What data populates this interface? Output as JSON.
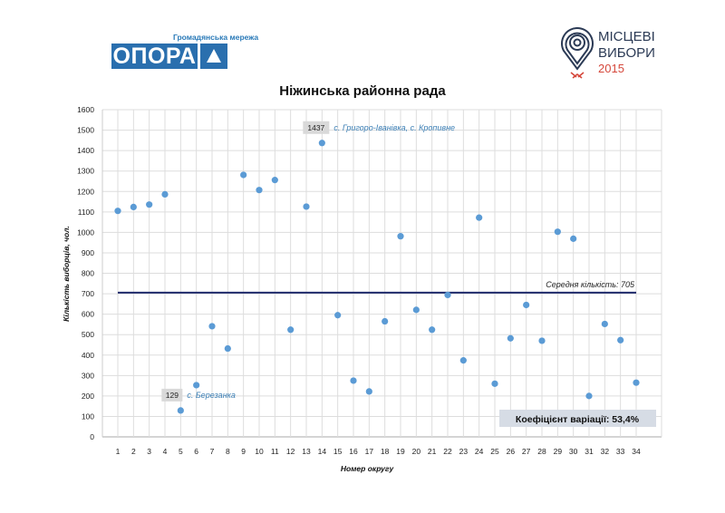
{
  "logos": {
    "opora": {
      "subtitle": "Громадянська мережа",
      "name": "ОПОРА"
    },
    "elections": {
      "line1": "МІСЦЕВІ",
      "line2": "ВИБОРИ",
      "year": "2015"
    }
  },
  "chart_data": {
    "type": "scatter",
    "title": "Ніжинська районна рада",
    "xlabel": "Номер округу",
    "ylabel": "Кількість виборців, чол.",
    "ylim": [
      0,
      1600
    ],
    "yticks": [
      0,
      100,
      200,
      300,
      400,
      500,
      600,
      700,
      800,
      900,
      1000,
      1100,
      1200,
      1300,
      1400,
      1500,
      1600
    ],
    "x": [
      1,
      2,
      3,
      4,
      5,
      6,
      7,
      8,
      9,
      10,
      11,
      12,
      13,
      14,
      15,
      16,
      17,
      18,
      19,
      20,
      21,
      22,
      23,
      24,
      25,
      26,
      27,
      28,
      29,
      30,
      31,
      32,
      33,
      34
    ],
    "values": [
      1105,
      1124,
      1136,
      1186,
      129,
      253,
      541,
      432,
      1281,
      1207,
      1256,
      524,
      1126,
      1437,
      595,
      275,
      222,
      565,
      981,
      621,
      524,
      694,
      374,
      1072,
      260,
      482,
      645,
      470,
      1003,
      969,
      200,
      552,
      473,
      265
    ],
    "grid": true,
    "point_color": "#5b9bd5",
    "mean": {
      "value": 705,
      "label": "Середня кількість: 705",
      "color": "#1f2a6b"
    },
    "annotations": [
      {
        "x": 14,
        "value_label": "1437",
        "text": "с. Григоро-Іванівка, с. Кропивне"
      },
      {
        "x": 5,
        "value_label": "129",
        "text": "с. Березанка"
      }
    ],
    "variation_label": "Коефіцієнт варіації:  53,4%"
  }
}
